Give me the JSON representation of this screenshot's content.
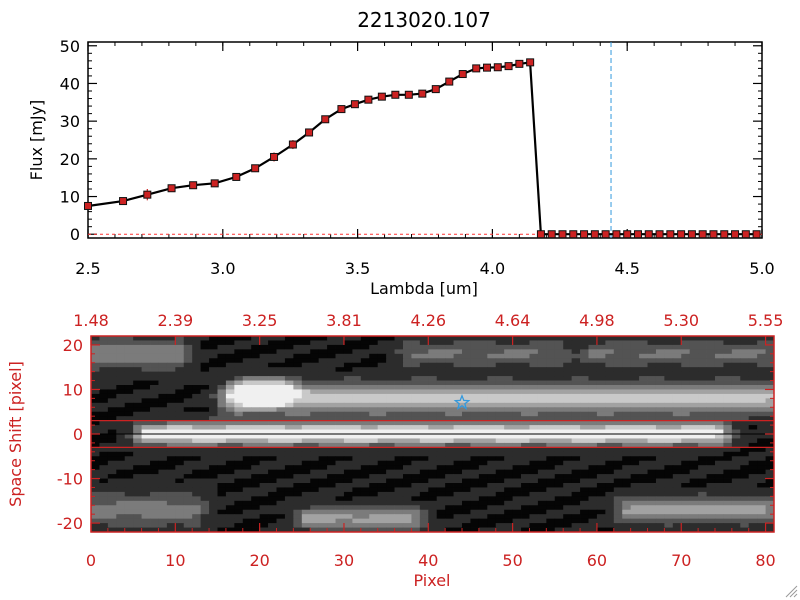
{
  "chart_data": [
    {
      "type": "line",
      "title": "2213020.107",
      "xlabel": "Lambda [um]",
      "ylabel": "Flux [mJy]",
      "xlim": [
        2.5,
        5.0
      ],
      "ylim": [
        -1,
        51
      ],
      "x_ticks": [
        "2.5",
        "3.0",
        "3.5",
        "4.0",
        "4.5",
        "5.0"
      ],
      "x_tick_values": [
        2.5,
        3.0,
        3.5,
        4.0,
        4.5,
        5.0
      ],
      "y_ticks": [
        "0",
        "10",
        "20",
        "30",
        "40",
        "50"
      ],
      "y_tick_values": [
        0,
        10,
        20,
        30,
        40,
        50
      ],
      "marker_line_wavelength": 4.44,
      "series": [
        {
          "name": "flux",
          "x": [
            2.5,
            2.63,
            2.72,
            2.81,
            2.89,
            2.97,
            3.05,
            3.12,
            3.19,
            3.26,
            3.32,
            3.38,
            3.44,
            3.49,
            3.54,
            3.59,
            3.64,
            3.69,
            3.74,
            3.79,
            3.84,
            3.89,
            3.94,
            3.98,
            4.02,
            4.06,
            4.1,
            4.14,
            4.18,
            4.22,
            4.26,
            4.3,
            4.34,
            4.38,
            4.42,
            4.46,
            4.5,
            4.54,
            4.58,
            4.62,
            4.66,
            4.7,
            4.74,
            4.78,
            4.82,
            4.86,
            4.9,
            4.94,
            4.98
          ],
          "y": [
            7.5,
            8.8,
            10.5,
            12.2,
            13.0,
            13.5,
            15.2,
            17.5,
            20.5,
            23.8,
            27.0,
            30.5,
            33.2,
            34.5,
            35.7,
            36.5,
            37.0,
            37.0,
            37.3,
            38.5,
            40.5,
            42.5,
            44.0,
            44.2,
            44.3,
            44.6,
            45.2,
            45.6,
            0,
            0,
            0,
            0,
            0,
            0,
            0,
            0,
            0,
            0,
            0,
            0,
            0,
            0,
            0,
            0,
            0,
            0,
            0,
            0,
            0
          ],
          "err": [
            0.5,
            0.8,
            1.5,
            0.8,
            0.6,
            0.6,
            0.8,
            1.0,
            1.2,
            1.2,
            1.0,
            0.8,
            0.7,
            0.6,
            0.6,
            0.6,
            0.6,
            0.6,
            0.6,
            0.6,
            0.7,
            0.7,
            0.7,
            0.7,
            0.7,
            0.7,
            0.8,
            0.8,
            0.3,
            0.3,
            0.3,
            0.3,
            0.3,
            0.3,
            0.3,
            0.3,
            0.3,
            0.3,
            0.3,
            0.3,
            0.3,
            0.3,
            0.3,
            0.3,
            0.3,
            0.3,
            0.3,
            0.3,
            0.3
          ]
        }
      ]
    },
    {
      "type": "heatmap",
      "xlabel": "Pixel",
      "ylabel": "Space Shift [pixel]",
      "xlim": [
        0,
        81
      ],
      "ylim": [
        -22,
        22
      ],
      "x_ticks": [
        "0",
        "10",
        "20",
        "30",
        "40",
        "50",
        "60",
        "70",
        "80"
      ],
      "x_tick_values": [
        0,
        10,
        20,
        30,
        40,
        50,
        60,
        70,
        80
      ],
      "top_ticks": [
        "1.48",
        "2.39",
        "3.25",
        "3.81",
        "4.26",
        "4.64",
        "4.98",
        "5.30",
        "5.55"
      ],
      "y_ticks": [
        "20",
        "10",
        "0",
        "-10",
        "-20"
      ],
      "y_tick_values": [
        20,
        10,
        0,
        -10,
        -20
      ],
      "extraction_aperture": [
        -3,
        3
      ],
      "trace_center": 0,
      "star_position": [
        44,
        7
      ],
      "features": [
        {
          "x_range": [
            7,
            74
          ],
          "y": 0,
          "width": 2.5,
          "brightness": 0.95
        },
        {
          "x_range": [
            17,
            80
          ],
          "y": 8,
          "width": 3.5,
          "brightness": 0.75
        },
        {
          "x_range": [
            19,
            22
          ],
          "y": 9.5,
          "width": 2.5,
          "brightness": 1.0
        },
        {
          "x_range": [
            0,
            10
          ],
          "y": 18,
          "width": 3.5,
          "brightness": 0.45
        },
        {
          "x_range": [
            0,
            12
          ],
          "y": -17,
          "width": 4,
          "brightness": 0.4
        },
        {
          "x_range": [
            26,
            38
          ],
          "y": -19,
          "width": 2.5,
          "brightness": 0.55
        },
        {
          "x_range": [
            64,
            80
          ],
          "y": -17,
          "width": 3,
          "brightness": 0.55
        },
        {
          "x_range": [
            60,
            81
          ],
          "y": 18,
          "width": 3,
          "brightness": 0.35
        },
        {
          "x_range": [
            38,
            55
          ],
          "y": 18,
          "width": 3,
          "brightness": 0.35
        }
      ]
    }
  ],
  "colors": {
    "axes": "#000000",
    "accent": "#cc2222",
    "marker": "#ff3333",
    "marker_line": "#3399dd",
    "star": "#3399dd",
    "aperture": "#cc2222"
  }
}
